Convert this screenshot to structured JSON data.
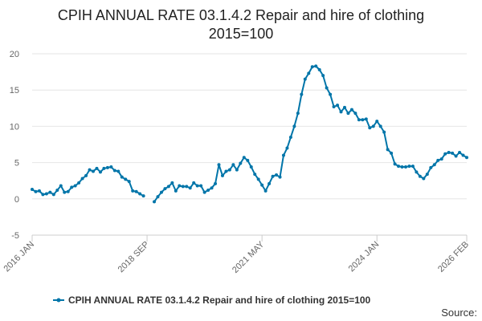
{
  "chart_data": {
    "type": "line",
    "title_line1": "CPIH ANNUAL RATE 03.1.4.2 Repair and hire of clothing",
    "title_line2": "2015=100",
    "source_label": "Source:",
    "x_tick_labels": [
      "2016 JAN",
      "2018 SEP",
      "2021 MAY",
      "2024 JAN",
      "2026 FEB"
    ],
    "y_ticks": [
      -5,
      0,
      5,
      10,
      15,
      20
    ],
    "ylim": [
      -5,
      20
    ],
    "xlim": [
      "2016-01",
      "2026-02"
    ],
    "grid": true,
    "legend_position": "bottom",
    "series": [
      {
        "name": "CPIH ANNUAL RATE 03.1.4.2 Repair and hire of clothing 2015=100",
        "color": "#0075a9",
        "points": [
          [
            "2016-01",
            1.3
          ],
          [
            "2016-02",
            1.0
          ],
          [
            "2016-03",
            1.1
          ],
          [
            "2016-04",
            0.6
          ],
          [
            "2016-05",
            0.7
          ],
          [
            "2016-06",
            0.9
          ],
          [
            "2016-07",
            0.6
          ],
          [
            "2016-08",
            1.2
          ],
          [
            "2016-09",
            1.8
          ],
          [
            "2016-10",
            0.9
          ],
          [
            "2016-11",
            1.0
          ],
          [
            "2016-12",
            1.6
          ],
          [
            "2017-01",
            1.8
          ],
          [
            "2017-02",
            2.2
          ],
          [
            "2017-03",
            2.8
          ],
          [
            "2017-04",
            3.2
          ],
          [
            "2017-05",
            4.0
          ],
          [
            "2017-06",
            3.8
          ],
          [
            "2017-07",
            4.2
          ],
          [
            "2017-08",
            3.7
          ],
          [
            "2017-09",
            4.2
          ],
          [
            "2017-10",
            4.3
          ],
          [
            "2017-11",
            4.4
          ],
          [
            "2017-12",
            3.9
          ],
          [
            "2018-01",
            3.8
          ],
          [
            "2018-02",
            3.0
          ],
          [
            "2018-03",
            2.7
          ],
          [
            "2018-04",
            2.4
          ],
          [
            "2018-05",
            1.1
          ],
          [
            "2018-06",
            1.0
          ],
          [
            "2018-07",
            0.7
          ],
          [
            "2018-08",
            0.4
          ],
          [
            "2018-11",
            -0.4
          ],
          [
            "2018-12",
            0.3
          ],
          [
            "2019-01",
            0.9
          ],
          [
            "2019-02",
            1.4
          ],
          [
            "2019-03",
            1.7
          ],
          [
            "2019-04",
            2.2
          ],
          [
            "2019-05",
            1.1
          ],
          [
            "2019-06",
            1.8
          ],
          [
            "2019-07",
            1.7
          ],
          [
            "2019-08",
            1.7
          ],
          [
            "2019-09",
            1.5
          ],
          [
            "2019-10",
            2.2
          ],
          [
            "2019-11",
            1.8
          ],
          [
            "2019-12",
            1.8
          ],
          [
            "2020-01",
            0.9
          ],
          [
            "2020-02",
            1.2
          ],
          [
            "2020-03",
            1.5
          ],
          [
            "2020-04",
            2.1
          ],
          [
            "2020-05",
            4.7
          ],
          [
            "2020-06",
            3.2
          ],
          [
            "2020-07",
            3.8
          ],
          [
            "2020-08",
            4.0
          ],
          [
            "2020-09",
            4.7
          ],
          [
            "2020-10",
            4.0
          ],
          [
            "2020-11",
            4.9
          ],
          [
            "2020-12",
            5.7
          ],
          [
            "2021-01",
            5.3
          ],
          [
            "2021-02",
            4.4
          ],
          [
            "2021-03",
            3.4
          ],
          [
            "2021-04",
            2.7
          ],
          [
            "2021-05",
            1.9
          ],
          [
            "2021-06",
            1.1
          ],
          [
            "2021-07",
            2.1
          ],
          [
            "2021-08",
            3.1
          ],
          [
            "2021-09",
            3.3
          ],
          [
            "2021-10",
            3.0
          ],
          [
            "2021-11",
            6.0
          ],
          [
            "2021-12",
            7.0
          ],
          [
            "2022-01",
            8.5
          ],
          [
            "2022-02",
            10.0
          ],
          [
            "2022-03",
            11.8
          ],
          [
            "2022-04",
            14.4
          ],
          [
            "2022-05",
            16.5
          ],
          [
            "2022-06",
            17.3
          ],
          [
            "2022-07",
            18.2
          ],
          [
            "2022-08",
            18.3
          ],
          [
            "2022-09",
            17.8
          ],
          [
            "2022-10",
            17.0
          ],
          [
            "2022-11",
            15.3
          ],
          [
            "2022-12",
            14.4
          ],
          [
            "2023-01",
            12.7
          ],
          [
            "2023-02",
            12.9
          ],
          [
            "2023-03",
            12.0
          ],
          [
            "2023-04",
            12.6
          ],
          [
            "2023-05",
            11.8
          ],
          [
            "2023-06",
            12.3
          ],
          [
            "2023-07",
            11.8
          ],
          [
            "2023-08",
            10.9
          ],
          [
            "2023-09",
            10.9
          ],
          [
            "2023-10",
            11.0
          ],
          [
            "2023-11",
            9.8
          ],
          [
            "2023-12",
            10.0
          ],
          [
            "2024-01",
            10.7
          ],
          [
            "2024-02",
            10.0
          ],
          [
            "2024-03",
            9.2
          ],
          [
            "2024-04",
            6.8
          ],
          [
            "2024-05",
            6.3
          ],
          [
            "2024-06",
            4.8
          ],
          [
            "2024-07",
            4.5
          ],
          [
            "2024-08",
            4.4
          ],
          [
            "2024-09",
            4.4
          ],
          [
            "2024-10",
            4.5
          ],
          [
            "2024-11",
            4.5
          ],
          [
            "2024-12",
            3.7
          ],
          [
            "2025-01",
            3.1
          ],
          [
            "2025-02",
            2.8
          ],
          [
            "2025-03",
            3.4
          ],
          [
            "2025-04",
            4.3
          ],
          [
            "2025-05",
            4.7
          ],
          [
            "2025-06",
            5.3
          ],
          [
            "2025-07",
            5.5
          ],
          [
            "2025-08",
            6.2
          ],
          [
            "2025-09",
            6.4
          ],
          [
            "2025-10",
            6.3
          ],
          [
            "2025-11",
            5.9
          ],
          [
            "2025-12",
            6.4
          ],
          [
            "2026-01",
            6.0
          ],
          [
            "2026-02",
            5.7
          ]
        ]
      }
    ]
  }
}
